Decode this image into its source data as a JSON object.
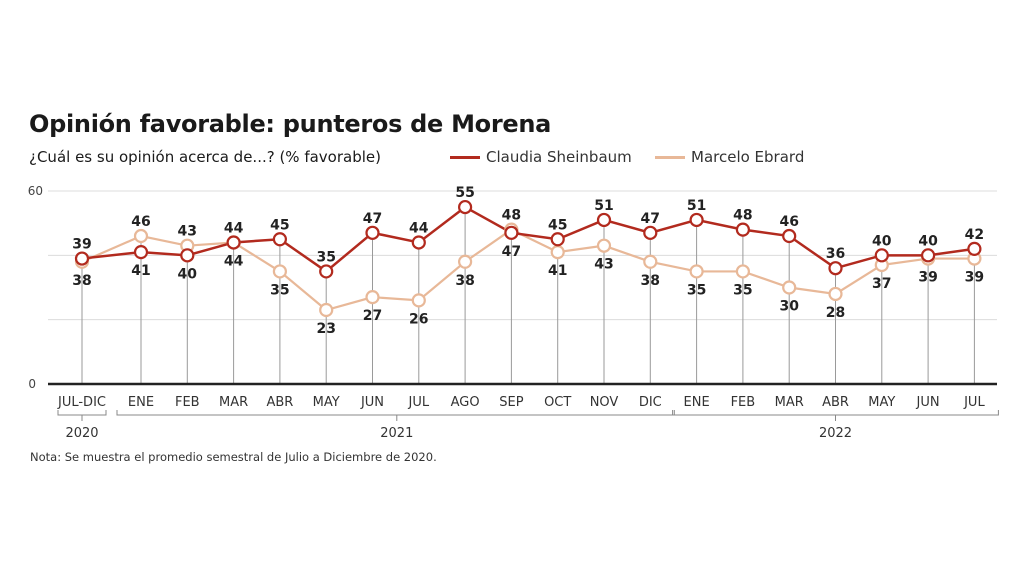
{
  "chart_data": {
    "type": "line",
    "title": "Opinión favorable: punteros de Morena",
    "subtitle": "¿Cuál es su opinión acerca de...? (% favorable)",
    "xlabel": "",
    "ylabel": "",
    "ylim": [
      0,
      60
    ],
    "yticks": [
      "0",
      "60"
    ],
    "gridlines": [
      0,
      20,
      40,
      60
    ],
    "grid": true,
    "legend_position": "top-right",
    "categories": [
      "JUL-DIC",
      "ENE",
      "FEB",
      "MAR",
      "ABR",
      "MAY",
      "JUN",
      "JUL",
      "AGO",
      "SEP",
      "OCT",
      "NOV",
      "DIC",
      "ENE",
      "FEB",
      "MAR",
      "ABR",
      "MAY",
      "JUN",
      "JUL"
    ],
    "year_groups": [
      {
        "label": "2020",
        "start": 0,
        "end": 0
      },
      {
        "label": "2021",
        "start": 1,
        "end": 12
      },
      {
        "label": "2022",
        "start": 13,
        "end": 19
      }
    ],
    "series": [
      {
        "name": "Claudia Sheinbaum",
        "color": "#b22a1e",
        "values": [
          39,
          41,
          40,
          44,
          45,
          35,
          47,
          44,
          55,
          47,
          45,
          51,
          47,
          51,
          48,
          46,
          36,
          40,
          40,
          42
        ]
      },
      {
        "name": "Marcelo Ebrard",
        "color": "#e8b898",
        "values": [
          38,
          46,
          43,
          44,
          35,
          23,
          27,
          26,
          38,
          48,
          41,
          43,
          38,
          35,
          35,
          30,
          28,
          37,
          39,
          39
        ]
      }
    ],
    "note": "Nota: Se muestra el promedio semestral de Julio a Diciembre de 2020."
  }
}
